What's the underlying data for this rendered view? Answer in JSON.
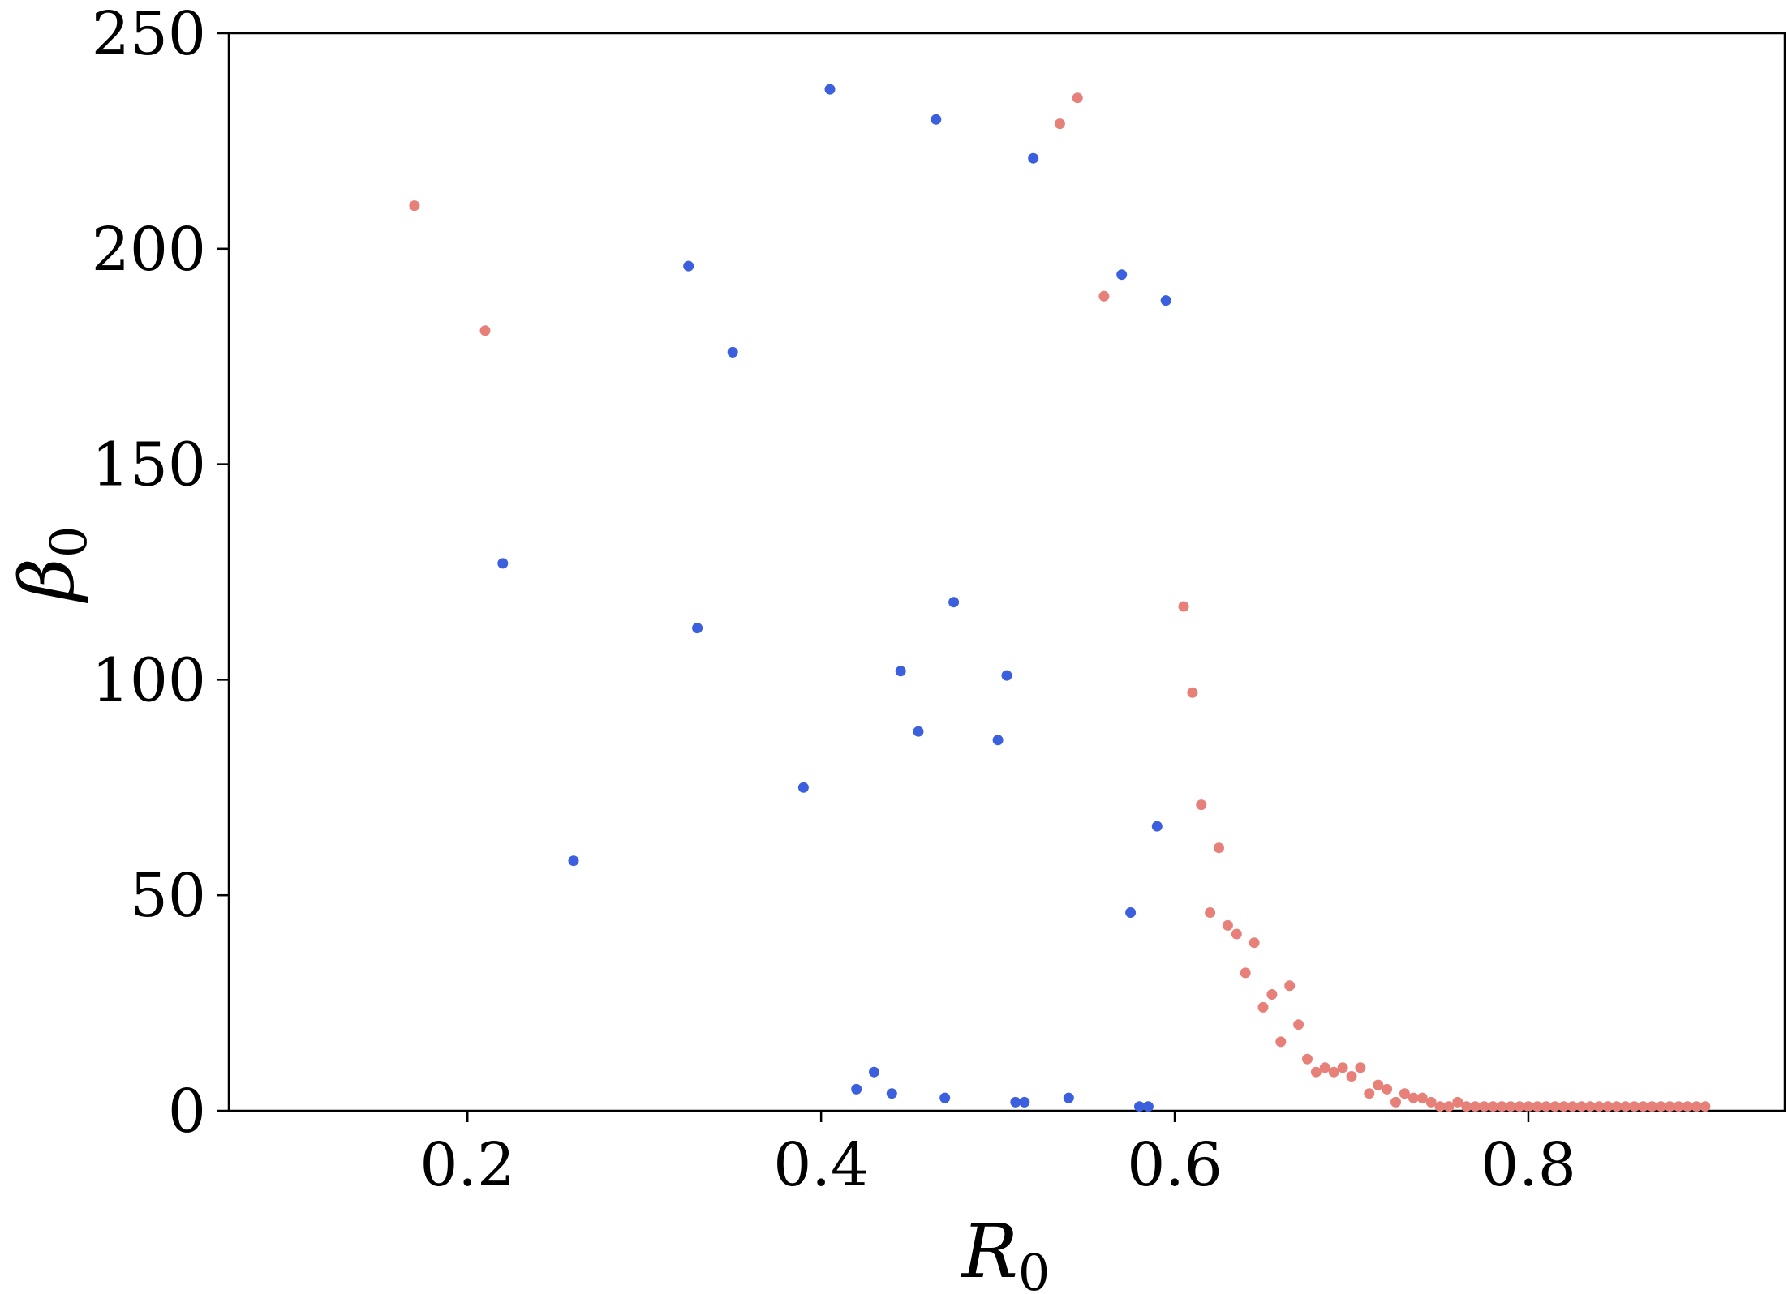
{
  "chart_data": {
    "type": "scatter",
    "xlabel": "R",
    "xlabel_sub": "0",
    "ylabel": "β",
    "ylabel_sub": "0",
    "xlim": [
      0.065,
      0.945
    ],
    "ylim": [
      0,
      250
    ],
    "xticks": [
      0.2,
      0.4,
      0.6,
      0.8
    ],
    "xtick_labels": [
      "0.2",
      "0.4",
      "0.6",
      "0.8"
    ],
    "yticks": [
      0,
      50,
      100,
      150,
      200,
      250
    ],
    "ytick_labels": [
      "0",
      "50",
      "100",
      "150",
      "200",
      "250"
    ],
    "grid": false,
    "series": [
      {
        "color": "#3b5fdd",
        "points": [
          [
            0.22,
            127
          ],
          [
            0.26,
            58
          ],
          [
            0.325,
            196
          ],
          [
            0.33,
            112
          ],
          [
            0.35,
            176
          ],
          [
            0.39,
            75
          ],
          [
            0.405,
            237
          ],
          [
            0.42,
            5
          ],
          [
            0.43,
            9
          ],
          [
            0.44,
            4
          ],
          [
            0.445,
            102
          ],
          [
            0.455,
            88
          ],
          [
            0.465,
            230
          ],
          [
            0.47,
            3
          ],
          [
            0.475,
            118
          ],
          [
            0.5,
            86
          ],
          [
            0.505,
            101
          ],
          [
            0.51,
            2
          ],
          [
            0.515,
            2
          ],
          [
            0.52,
            221
          ],
          [
            0.54,
            3
          ],
          [
            0.57,
            194
          ],
          [
            0.575,
            46
          ],
          [
            0.58,
            1
          ],
          [
            0.585,
            1
          ],
          [
            0.59,
            66
          ],
          [
            0.595,
            188
          ]
        ]
      },
      {
        "color": "#e8807a",
        "points": [
          [
            0.17,
            210
          ],
          [
            0.21,
            181
          ],
          [
            0.535,
            229
          ],
          [
            0.545,
            235
          ],
          [
            0.56,
            189
          ],
          [
            0.605,
            117
          ],
          [
            0.61,
            97
          ],
          [
            0.615,
            71
          ],
          [
            0.62,
            46
          ],
          [
            0.625,
            61
          ],
          [
            0.63,
            43
          ],
          [
            0.635,
            41
          ],
          [
            0.64,
            32
          ],
          [
            0.645,
            39
          ],
          [
            0.65,
            24
          ],
          [
            0.655,
            27
          ],
          [
            0.66,
            16
          ],
          [
            0.665,
            29
          ],
          [
            0.67,
            20
          ],
          [
            0.675,
            12
          ],
          [
            0.68,
            9
          ],
          [
            0.685,
            10
          ],
          [
            0.69,
            9
          ],
          [
            0.695,
            10
          ],
          [
            0.7,
            8
          ],
          [
            0.705,
            10
          ],
          [
            0.71,
            4
          ],
          [
            0.715,
            6
          ],
          [
            0.72,
            5
          ],
          [
            0.725,
            2
          ],
          [
            0.73,
            4
          ],
          [
            0.735,
            3
          ],
          [
            0.74,
            3
          ],
          [
            0.745,
            2
          ],
          [
            0.75,
            1
          ],
          [
            0.755,
            1
          ],
          [
            0.76,
            2
          ],
          [
            0.765,
            1
          ],
          [
            0.77,
            1
          ],
          [
            0.775,
            1
          ],
          [
            0.78,
            1
          ],
          [
            0.785,
            1
          ],
          [
            0.79,
            1
          ],
          [
            0.795,
            1
          ],
          [
            0.8,
            1
          ],
          [
            0.805,
            1
          ],
          [
            0.81,
            1
          ],
          [
            0.815,
            1
          ],
          [
            0.82,
            1
          ],
          [
            0.825,
            1
          ],
          [
            0.83,
            1
          ],
          [
            0.835,
            1
          ],
          [
            0.84,
            1
          ],
          [
            0.845,
            1
          ],
          [
            0.85,
            1
          ],
          [
            0.855,
            1
          ],
          [
            0.86,
            1
          ],
          [
            0.865,
            1
          ],
          [
            0.87,
            1
          ],
          [
            0.875,
            1
          ],
          [
            0.88,
            1
          ],
          [
            0.885,
            1
          ],
          [
            0.89,
            1
          ],
          [
            0.895,
            1
          ],
          [
            0.9,
            1
          ]
        ]
      }
    ]
  }
}
